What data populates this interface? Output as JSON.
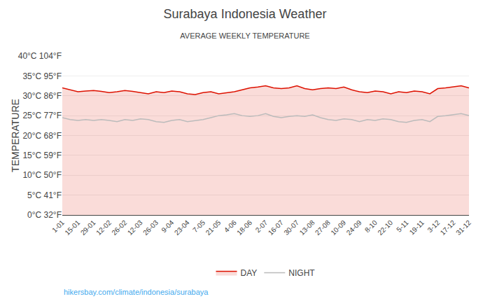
{
  "chart_data": {
    "type": "line",
    "title": "Surabaya Indonesia Weather",
    "subtitle": "AVERAGE WEEKLY TEMPERATURE",
    "ylabel": "TEMPERATURE",
    "annotations": [
      "hikersbay.com/climate/indonesia/surabaya"
    ],
    "categories": [
      "1-01",
      null,
      "15-01",
      null,
      "29-01",
      null,
      "12-02",
      null,
      "26-02",
      null,
      "12-03",
      null,
      "26-03",
      null,
      "9-04",
      null,
      "23-04",
      null,
      "7-05",
      null,
      "21-05",
      null,
      "4-06",
      null,
      "18-06",
      null,
      "2-07",
      null,
      "16-07",
      null,
      "30-07",
      null,
      "13-08",
      null,
      "27-08",
      null,
      "10-09",
      null,
      "24-09",
      null,
      "8-10",
      null,
      "22-10",
      null,
      "5-11",
      null,
      "19-11",
      null,
      "3-12",
      null,
      "17-12",
      null,
      "31-12"
    ],
    "series": [
      {
        "name": "DAY",
        "color": "#dd1100",
        "values": [
          32.0,
          31.5,
          31.0,
          31.2,
          31.3,
          31.1,
          30.8,
          31.0,
          31.3,
          31.1,
          30.8,
          30.5,
          31.0,
          30.8,
          31.2,
          31.0,
          30.5,
          30.3,
          30.8,
          31.0,
          30.5,
          30.8,
          31.0,
          31.5,
          32.0,
          32.2,
          32.5,
          32.0,
          31.8,
          32.0,
          32.5,
          31.8,
          31.5,
          31.8,
          32.0,
          31.8,
          32.2,
          31.5,
          31.0,
          30.8,
          31.2,
          31.0,
          30.5,
          31.0,
          30.8,
          31.2,
          31.0,
          30.5,
          31.8,
          32.0,
          32.2,
          32.5,
          32.0
        ]
      },
      {
        "name": "NIGHT",
        "color": "#bbbbbb",
        "values": [
          24.5,
          24.0,
          23.8,
          24.0,
          23.8,
          24.0,
          23.8,
          23.5,
          24.0,
          23.8,
          24.2,
          24.0,
          23.5,
          23.3,
          23.8,
          24.0,
          23.5,
          23.8,
          24.0,
          24.5,
          25.0,
          25.2,
          25.5,
          25.0,
          24.8,
          25.0,
          25.5,
          24.8,
          24.5,
          24.8,
          25.0,
          24.8,
          25.2,
          24.5,
          24.0,
          23.8,
          24.2,
          24.0,
          23.5,
          24.0,
          23.8,
          24.2,
          24.0,
          23.5,
          23.3,
          23.8,
          24.0,
          23.5,
          24.8,
          25.0,
          25.2,
          25.5,
          25.0
        ]
      }
    ],
    "ylim": [
      0,
      40
    ],
    "yticks": [
      {
        "value": 0,
        "label": "0°C 32°F"
      },
      {
        "value": 5,
        "label": "5°C 41°F"
      },
      {
        "value": 10,
        "label": "10°C 50°F"
      },
      {
        "value": 15,
        "label": "15°C 59°F"
      },
      {
        "value": 20,
        "label": "20°C 68°F"
      },
      {
        "value": 25,
        "label": "25°C 77°F"
      },
      {
        "value": 30,
        "label": "30°C 86°F"
      },
      {
        "value": 35,
        "label": "35°C 95°F"
      },
      {
        "value": 40,
        "label": "40°C 104°F"
      }
    ],
    "grid": true,
    "legend": "bottom"
  }
}
